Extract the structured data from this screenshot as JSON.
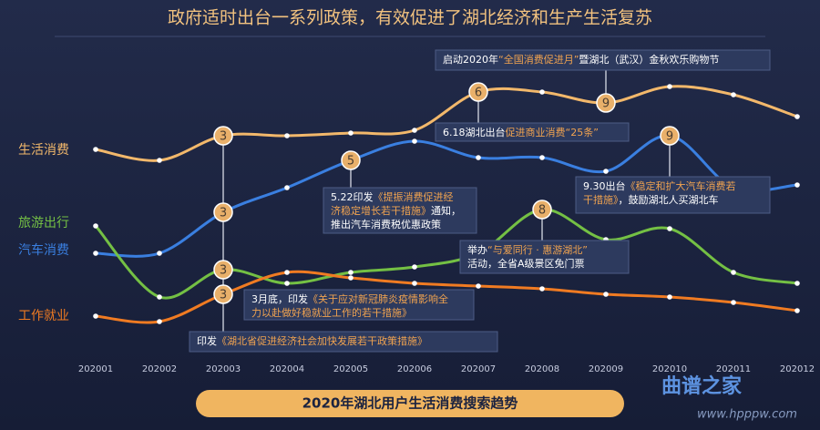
{
  "chart_data": {
    "type": "line",
    "title": "政府适时出台一系列政策，有效促进了湖北经济和生产生活复苏",
    "subtitle": "2020年湖北用户生活消费搜索趋势",
    "categories": [
      "202001",
      "202002",
      "202003",
      "202004",
      "202005",
      "202006",
      "202007",
      "202008",
      "202009",
      "202010",
      "202011",
      "202012"
    ],
    "series": [
      {
        "name": "生活消费",
        "color": "#f2b86b",
        "values": [
          72,
          68,
          77,
          77,
          78,
          79,
          93,
          93,
          89,
          95,
          92,
          84
        ]
      },
      {
        "name": "汽车消费",
        "color": "#3a7fe0",
        "values": [
          34,
          34,
          49,
          58,
          68,
          75,
          69,
          69,
          64,
          77,
          58,
          59
        ]
      },
      {
        "name": "旅游出行",
        "color": "#74c044",
        "values": [
          44,
          18,
          28,
          23,
          27,
          29,
          34,
          50,
          39,
          43,
          27,
          23
        ]
      },
      {
        "name": "工作就业",
        "color": "#f07b22",
        "values": [
          11,
          9,
          19,
          27,
          25,
          23,
          22,
          21,
          19,
          18,
          16,
          13
        ]
      }
    ],
    "ylim": [
      0,
      100
    ],
    "markers": [
      "3",
      "3",
      "3",
      "3",
      "5",
      "6",
      "8",
      "9",
      "9"
    ],
    "annotations": [
      [
        [
          "启动2020年",
          "“全国消费促进月”",
          "暨湖北（武汉）金秋欢乐购物节"
        ]
      ],
      [
        [
          "6.18湖北出台",
          "促进商业消费“25条”"
        ]
      ],
      [
        [
          "5.22印发",
          "《提振消费促进经"
        ],
        [
          "",
          "济稳定增长若干措施》",
          "通知，"
        ],
        [
          "推出汽车消费税优惠政策"
        ]
      ],
      [
        [
          "9.30出台",
          "《稳定和扩大汽车消费若"
        ],
        [
          "",
          "干措施》",
          "，鼓励湖北人买湖北车"
        ]
      ],
      [
        [
          "举办",
          "“与爱同行 · 惠游湖北”"
        ],
        [
          "活动，全省A级景区免门票"
        ]
      ],
      [
        [
          "3月底，印发",
          "《关于应对新冠肺炎疫情影响全"
        ],
        [
          "",
          "力以赴做好稳就业工作的若干措施》"
        ]
      ],
      [
        [
          "印发",
          "《湖北省促进经济社会加快发展若干政策措施》"
        ]
      ]
    ],
    "watermark": [
      "曲谱之家",
      "www.hpppw.com"
    ]
  }
}
